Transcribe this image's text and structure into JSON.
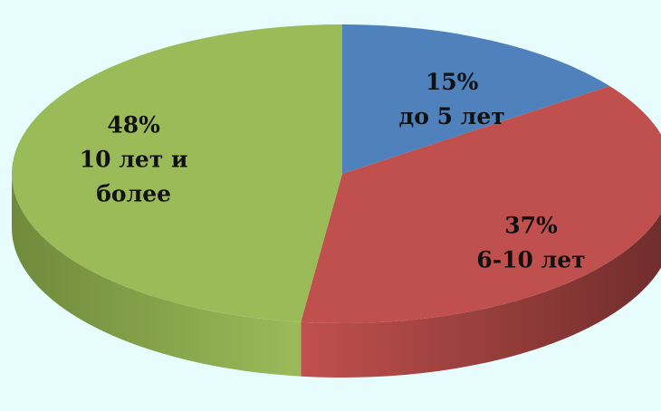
{
  "chart_data": {
    "type": "pie",
    "style": "3d",
    "values": [
      15,
      37,
      48
    ],
    "labels": [
      {
        "pct": "15%",
        "lines": [
          "до 5 лет"
        ]
      },
      {
        "pct": "37%",
        "lines": [
          "6-10 лет"
        ]
      },
      {
        "pct": "48%",
        "lines": [
          "10 лет и",
          "более"
        ]
      }
    ],
    "colors": [
      "#4f81bd",
      "#c0504d",
      "#9bbb59"
    ],
    "side_colors": [
      "#2f4d74",
      "#6e2c2b",
      "#6f8a3c"
    ],
    "start_angle_deg": -90,
    "direction": "clockwise"
  }
}
